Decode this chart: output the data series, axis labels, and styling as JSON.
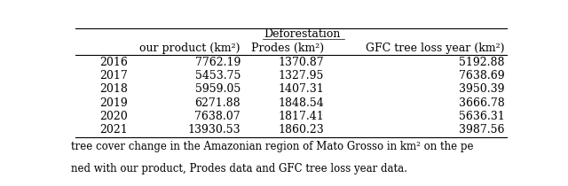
{
  "years": [
    "2016",
    "2017",
    "2018",
    "2019",
    "2020",
    "2021"
  ],
  "our_product": [
    7762.19,
    5453.75,
    5959.05,
    6271.88,
    7638.07,
    13930.53
  ],
  "prodes": [
    1370.87,
    1327.95,
    1407.31,
    1848.54,
    1817.41,
    1860.23
  ],
  "gfc": [
    5192.88,
    7638.69,
    3950.39,
    3666.78,
    5636.31,
    3987.56
  ],
  "caption_line1": "tree cover change in the Amazonian region of Mato Grosso in km² on the pe",
  "caption_line2": "ned with our product, Prodes data and GFC tree loss year data.",
  "bg_color": "#ffffff",
  "text_color": "#000000",
  "font_size": 9.0
}
